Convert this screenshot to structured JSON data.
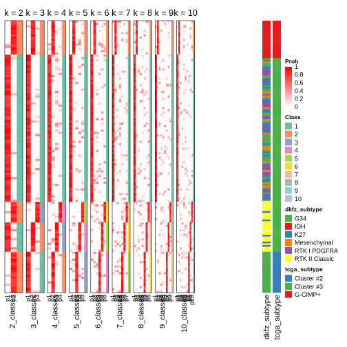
{
  "chart_data": {
    "type": "heatmap",
    "panels": [
      {
        "title": "k = 2",
        "xlabel": "2_classes",
        "columns": [
          "p1",
          "p2"
        ]
      },
      {
        "title": "k = 3",
        "xlabel": "3_classes",
        "columns": [
          "p1",
          "p2",
          "p3"
        ]
      },
      {
        "title": "k = 4",
        "xlabel": "4_classes",
        "columns": [
          "p1",
          "p2",
          "p3",
          "p4"
        ]
      },
      {
        "title": "k = 5",
        "xlabel": "5_classes",
        "columns": [
          "p1",
          "p2",
          "p3",
          "p4",
          "p5"
        ]
      },
      {
        "title": "k = 6",
        "xlabel": "6_classes",
        "columns": [
          "p1",
          "p2",
          "p3",
          "p4",
          "p5",
          "p6"
        ]
      },
      {
        "title": "k = 7",
        "xlabel": "7_classes",
        "columns": [
          "p1",
          "p2",
          "p3",
          "p4",
          "p5",
          "p6",
          "p7"
        ]
      },
      {
        "title": "k = 8",
        "xlabel": "8_classes",
        "columns": [
          "p1",
          "p2",
          "p3",
          "p4",
          "p5",
          "p6",
          "p7",
          "p8"
        ]
      },
      {
        "title": "k = 9",
        "xlabel": "9_classes",
        "columns": [
          "p1",
          "p2",
          "p3",
          "p4",
          "p5",
          "p6",
          "p7",
          "p8",
          "p9"
        ]
      },
      {
        "title": "k = 10",
        "xlabel": "10_classes",
        "columns": [
          "p1",
          "p2",
          "p3",
          "p4",
          "p5",
          "p6",
          "p7",
          "p8",
          "p9",
          "p10"
        ]
      }
    ],
    "annotation_columns": [
      {
        "label": "dkfz_subtype",
        "color": "#a9a9a9"
      },
      {
        "label": "tcga_subtype",
        "color": "#a9a9a9"
      }
    ],
    "legends": [
      {
        "title": "Prob",
        "type": "continuous",
        "ticks": [
          "1",
          "0.8",
          "0.6",
          "0.4",
          "0.2",
          "0"
        ],
        "colors": [
          "#ff0000",
          "#ffffff"
        ]
      },
      {
        "title": "Class",
        "type": "discrete",
        "items": [
          {
            "label": "1",
            "color": "#66c2a5"
          },
          {
            "label": "2",
            "color": "#fc8d62"
          },
          {
            "label": "3",
            "color": "#8da0cb"
          },
          {
            "label": "4",
            "color": "#e78ac3"
          },
          {
            "label": "5",
            "color": "#a6d854"
          },
          {
            "label": "6",
            "color": "#ffd92f"
          },
          {
            "label": "7",
            "color": "#e5c494"
          },
          {
            "label": "8",
            "color": "#b3b3b3"
          },
          {
            "label": "9",
            "color": "#8dd3c7"
          },
          {
            "label": "10",
            "color": "#bebada"
          }
        ]
      },
      {
        "title": "dkfz_subtype",
        "type": "discrete",
        "items": [
          {
            "label": "G34",
            "color": "#4daf4a"
          },
          {
            "label": "IDH",
            "color": "#e41a1c"
          },
          {
            "label": "K27",
            "color": "#377eb8"
          },
          {
            "label": "Mesenchymal",
            "color": "#ff7f00"
          },
          {
            "label": "RTK I PDGFRA",
            "color": "#984ea3"
          },
          {
            "label": "RTK II Classic",
            "color": "#ffff33"
          }
        ]
      },
      {
        "title": "tcga_subtype",
        "type": "discrete",
        "items": [
          {
            "label": "Cluster #2",
            "color": "#377eb8"
          },
          {
            "label": "Cluster #3",
            "color": "#4daf4a"
          },
          {
            "label": "G-CIMP+",
            "color": "#e41a1c"
          }
        ]
      }
    ]
  }
}
